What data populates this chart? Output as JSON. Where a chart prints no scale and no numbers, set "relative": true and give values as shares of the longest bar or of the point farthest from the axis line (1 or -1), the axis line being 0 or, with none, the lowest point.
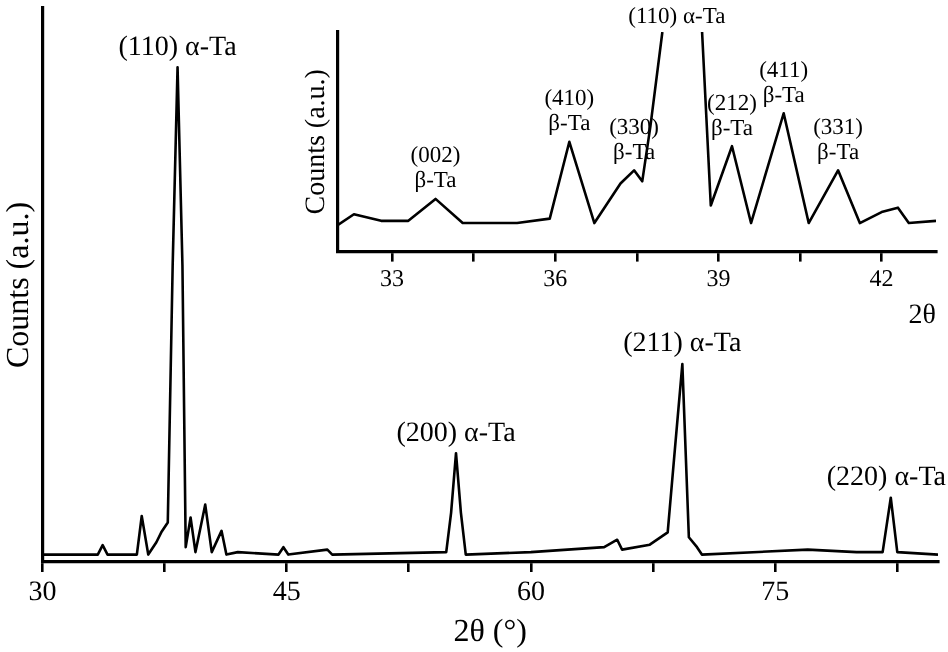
{
  "chart_data": [
    {
      "type": "line",
      "xlabel": "2θ (°)",
      "ylabel": "Counts (a.u.)",
      "relative": true,
      "tick_labels": "x",
      "xlim": [
        30,
        85
      ],
      "xticks": [
        30,
        {
          "value": 37.5,
          "label": null
        },
        45,
        {
          "value": 52.5,
          "label": null
        },
        60,
        {
          "value": 67.5,
          "label": null
        },
        75,
        {
          "value": 82.5,
          "label": null
        }
      ],
      "x": [
        30,
        33.4,
        33.7,
        34.0,
        35.8,
        36.1,
        36.5,
        37.0,
        37.3,
        37.7,
        38.0,
        38.3,
        38.6,
        38.8,
        39.1,
        39.4,
        40.0,
        40.4,
        41.0,
        41.3,
        42,
        44.5,
        44.8,
        45.1,
        47.5,
        47.8,
        54.8,
        55.1,
        55.4,
        55.7,
        56.0,
        60,
        64.5,
        65.3,
        65.6,
        67.3,
        68.4,
        68.9,
        69.3,
        69.7,
        70.2,
        70.5,
        77,
        80,
        81.6,
        82.1,
        82.5,
        85
      ],
      "series": [
        {
          "color": "#000000",
          "values": [
            0.015,
            0.015,
            0.034,
            0.015,
            0.015,
            0.093,
            0.015,
            0.04,
            0.06,
            0.08,
            0.6,
            1.0,
            0.6,
            0.03,
            0.09,
            0.02,
            0.116,
            0.02,
            0.063,
            0.015,
            0.02,
            0.015,
            0.03,
            0.015,
            0.025,
            0.015,
            0.02,
            0.1,
            0.22,
            0.1,
            0.015,
            0.02,
            0.03,
            0.045,
            0.025,
            0.035,
            0.06,
            0.25,
            0.4,
            0.05,
            0.03,
            0.015,
            0.025,
            0.02,
            0.02,
            0.13,
            0.02,
            0.015
          ]
        }
      ],
      "annotations": [
        {
          "text": "(110) α-Ta",
          "x": 38.3,
          "y": 1.0
        },
        {
          "text": "(200) α-Ta",
          "x": 55.4,
          "y": 0.22
        },
        {
          "text": "(211) α-Ta",
          "x": 69.3,
          "y": 0.4
        },
        {
          "text": "(220) α-Ta",
          "x": 82.1,
          "y": 0.13
        }
      ]
    },
    {
      "type": "line",
      "xlabel": "2θ",
      "ylabel": "Counts (a.u.)",
      "relative": true,
      "tick_labels": "x",
      "xlim": [
        32,
        43
      ],
      "xticks": [
        33,
        {
          "value": 34.5,
          "label": null
        },
        36,
        {
          "value": 37.5,
          "label": null
        },
        39,
        {
          "value": 40.5,
          "label": null
        },
        42
      ],
      "x": [
        32,
        32.3,
        32.8,
        33.3,
        33.8,
        34.3,
        34.8,
        35.3,
        35.9,
        36.26,
        36.72,
        37.2,
        37.45,
        37.6,
        37.75,
        37.97,
        38.0,
        38.7,
        38.86,
        39.25,
        39.6,
        40.2,
        40.66,
        41.2,
        41.6,
        42.0,
        42.3,
        42.5,
        43
      ],
      "series": [
        {
          "color": "#000000",
          "values": [
            0.12,
            0.17,
            0.14,
            0.14,
            0.24,
            0.13,
            0.13,
            0.13,
            0.15,
            0.5,
            0.13,
            0.31,
            0.37,
            0.32,
            0.57,
            1.0,
            null,
            1.0,
            0.21,
            0.48,
            0.13,
            0.63,
            0.13,
            0.37,
            0.13,
            0.18,
            0.2,
            0.13,
            0.14
          ]
        }
      ],
      "annotations": [
        {
          "text": "(002)\nβ-Ta",
          "x": 33.8,
          "y": 0.24
        },
        {
          "text": "(410)\nβ-Ta",
          "x": 36.26,
          "y": 0.5
        },
        {
          "text": "(330)\nβ-Ta",
          "x": 37.45,
          "y": 0.37
        },
        "(110) α-Ta",
        {
          "text": "(212)\nβ-Ta",
          "x": 39.25,
          "y": 0.48
        },
        {
          "text": "(411)\nβ-Ta",
          "x": 40.2,
          "y": 0.63
        },
        {
          "text": "(331)\nβ-Ta",
          "x": 41.2,
          "y": 0.37
        }
      ]
    }
  ]
}
